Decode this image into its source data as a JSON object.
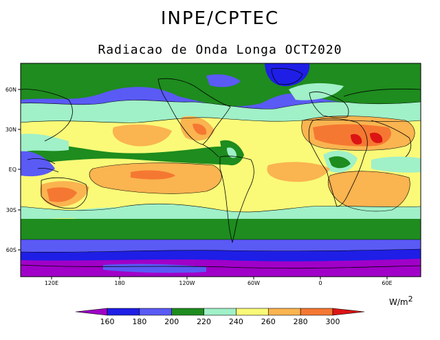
{
  "header": {
    "title": "INPE/CPTEC",
    "subtitle": "Radiacao de Onda Longa OCT2020"
  },
  "map": {
    "lat_labels": [
      "60N",
      "30N",
      "EQ",
      "30S",
      "60S"
    ],
    "lon_labels": [
      "120E",
      "180",
      "120W",
      "60W",
      "0",
      "60E"
    ]
  },
  "colorbar": {
    "unit": "W/m",
    "unit_exp": "2",
    "ticks": [
      "160",
      "180",
      "200",
      "220",
      "240",
      "260",
      "280",
      "300"
    ],
    "colors": [
      "#a000c8",
      "#1e1ee6",
      "#5a5af5",
      "#1e8c1e",
      "#a0f0c8",
      "#fafa78",
      "#fab450",
      "#f57832",
      "#dc1414"
    ]
  }
}
